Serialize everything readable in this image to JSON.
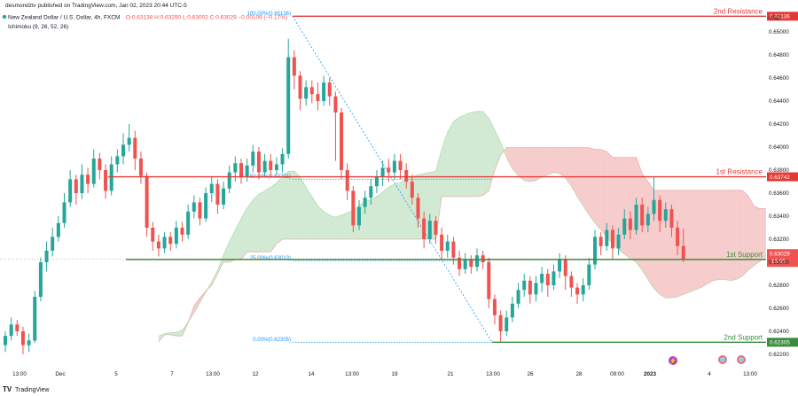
{
  "header": {
    "publisher": "desmondziv published on TradingView.com, Jan 02, 2023 20:44 UTC-5",
    "symbol_line": "New Zealand Dollar / U.S. Dollar, 4h, FXCM",
    "ohlc": "O:0.63138  H:0.63290  L:0.63002  C:0.63029  −0.00109 (−0.17%)",
    "indicator": "Ichimoku (9, 26, 52, 26)"
  },
  "footer": {
    "brand": "TradingView"
  },
  "chart_data": {
    "type": "candlestick",
    "currency": "USD",
    "ylim": [
      0.621,
      0.652
    ],
    "y_ticks": [
      0.622,
      0.624,
      0.626,
      0.628,
      0.63,
      0.632,
      0.634,
      0.636,
      0.638,
      0.64,
      0.642,
      0.644,
      0.646,
      0.648,
      0.65
    ],
    "x_ticks": [
      "13:00",
      "Dec",
      "5",
      "7",
      "13:00",
      "12",
      "14",
      "13:00",
      "19",
      "21",
      "13:00",
      "26",
      "28",
      "09:00",
      "2023",
      "4",
      "13:00"
    ],
    "levels": [
      {
        "label": "2nd Resistance",
        "price": 0.65136,
        "price_label": "0.65136",
        "color": "#e53935"
      },
      {
        "label": "1st Resistance",
        "price": 0.63742,
        "price_label": "0.63742",
        "color": "#e53935"
      },
      {
        "label": "1st Support",
        "price": 0.63024,
        "price_label": "0.63024",
        "color": "#388e3c"
      },
      {
        "label": "2nd Support",
        "price": 0.62305,
        "price_label": "0.62305",
        "color": "#388e3c"
      }
    ],
    "fibonacci": [
      {
        "label": "100.00%(0.65136)",
        "price": 0.65136
      },
      {
        "label": "50.00%(0.63721)",
        "price": 0.63721
      },
      {
        "label": "25.00%(0.63013)",
        "price": 0.63013
      },
      {
        "label": "0.00%(0.62305)",
        "price": 0.62305
      }
    ],
    "current_price": {
      "price": 0.63029,
      "label": "0.63029",
      "countdown": "15:05"
    },
    "candles": [
      [
        0.6228,
        0.6236,
        0.6222,
        0.624
      ],
      [
        0.6236,
        0.6246,
        0.6232,
        0.6252
      ],
      [
        0.6246,
        0.624,
        0.6236,
        0.625
      ],
      [
        0.624,
        0.6228,
        0.622,
        0.6244
      ],
      [
        0.6228,
        0.6232,
        0.6222,
        0.6238
      ],
      [
        0.6232,
        0.627,
        0.623,
        0.6275
      ],
      [
        0.627,
        0.63,
        0.6266,
        0.6304
      ],
      [
        0.63,
        0.631,
        0.6292,
        0.6318
      ],
      [
        0.631,
        0.6322,
        0.6305,
        0.633
      ],
      [
        0.6322,
        0.6334,
        0.6318,
        0.634
      ],
      [
        0.6334,
        0.6352,
        0.633,
        0.636
      ],
      [
        0.6352,
        0.6372,
        0.6348,
        0.638
      ],
      [
        0.6372,
        0.636,
        0.635,
        0.6376
      ],
      [
        0.636,
        0.6376,
        0.6355,
        0.6385
      ],
      [
        0.6376,
        0.6368,
        0.636,
        0.6382
      ],
      [
        0.6368,
        0.639,
        0.6365,
        0.6398
      ],
      [
        0.639,
        0.638,
        0.6372,
        0.6395
      ],
      [
        0.638,
        0.6362,
        0.6355,
        0.6385
      ],
      [
        0.6362,
        0.6385,
        0.6358,
        0.6392
      ],
      [
        0.6385,
        0.6392,
        0.6378,
        0.6398
      ],
      [
        0.6392,
        0.6402,
        0.6385,
        0.6412
      ],
      [
        0.6402,
        0.6408,
        0.6396,
        0.642
      ],
      [
        0.6408,
        0.639,
        0.638,
        0.6414
      ],
      [
        0.639,
        0.6375,
        0.6368,
        0.6396
      ],
      [
        0.6375,
        0.633,
        0.6322,
        0.6378
      ],
      [
        0.633,
        0.6318,
        0.631,
        0.6335
      ],
      [
        0.6318,
        0.6312,
        0.6305,
        0.6324
      ],
      [
        0.6312,
        0.6322,
        0.6308,
        0.6326
      ],
      [
        0.6322,
        0.6316,
        0.631,
        0.6326
      ],
      [
        0.6316,
        0.633,
        0.6312,
        0.6336
      ],
      [
        0.633,
        0.6324,
        0.6318,
        0.6335
      ],
      [
        0.6324,
        0.6344,
        0.632,
        0.635
      ],
      [
        0.6344,
        0.6352,
        0.6338,
        0.6358
      ],
      [
        0.6352,
        0.6338,
        0.6332,
        0.6356
      ],
      [
        0.6338,
        0.636,
        0.6335,
        0.6365
      ],
      [
        0.636,
        0.6368,
        0.6352,
        0.6374
      ],
      [
        0.6368,
        0.635,
        0.6342,
        0.6372
      ],
      [
        0.635,
        0.6364,
        0.6346,
        0.637
      ],
      [
        0.6364,
        0.6378,
        0.636,
        0.6384
      ],
      [
        0.6378,
        0.6386,
        0.637,
        0.6392
      ],
      [
        0.6386,
        0.6374,
        0.6368,
        0.639
      ],
      [
        0.6374,
        0.6384,
        0.637,
        0.639
      ],
      [
        0.6384,
        0.6396,
        0.6378,
        0.6402
      ],
      [
        0.6396,
        0.6378,
        0.6372,
        0.64
      ],
      [
        0.6378,
        0.6388,
        0.6374,
        0.6394
      ],
      [
        0.6388,
        0.638,
        0.6374,
        0.6394
      ],
      [
        0.638,
        0.6385,
        0.6376,
        0.6391
      ],
      [
        0.6385,
        0.6394,
        0.6378,
        0.6399
      ],
      [
        0.6394,
        0.6478,
        0.639,
        0.6494
      ],
      [
        0.6478,
        0.6462,
        0.645,
        0.6484
      ],
      [
        0.6462,
        0.6442,
        0.6432,
        0.6466
      ],
      [
        0.6442,
        0.6452,
        0.6436,
        0.6458
      ],
      [
        0.6452,
        0.6446,
        0.6438,
        0.6458
      ],
      [
        0.6446,
        0.644,
        0.6432,
        0.6456
      ],
      [
        0.644,
        0.6456,
        0.6436,
        0.6462
      ],
      [
        0.6456,
        0.6444,
        0.6436,
        0.646
      ],
      [
        0.6444,
        0.643,
        0.6388,
        0.6448
      ],
      [
        0.643,
        0.638,
        0.6372,
        0.6434
      ],
      [
        0.638,
        0.6362,
        0.6354,
        0.6386
      ],
      [
        0.6362,
        0.6332,
        0.6326,
        0.6366
      ],
      [
        0.6332,
        0.6348,
        0.6328,
        0.6354
      ],
      [
        0.6348,
        0.6356,
        0.6342,
        0.6362
      ],
      [
        0.6356,
        0.6366,
        0.635,
        0.6372
      ],
      [
        0.6366,
        0.6374,
        0.636,
        0.638
      ],
      [
        0.6374,
        0.6382,
        0.6366,
        0.6388
      ],
      [
        0.6382,
        0.6378,
        0.637,
        0.639
      ],
      [
        0.6378,
        0.6388,
        0.6372,
        0.6394
      ],
      [
        0.6388,
        0.638,
        0.6372,
        0.6394
      ],
      [
        0.638,
        0.637,
        0.6364,
        0.6386
      ],
      [
        0.637,
        0.6356,
        0.635,
        0.6376
      ],
      [
        0.6356,
        0.6338,
        0.633,
        0.636
      ],
      [
        0.6338,
        0.632,
        0.6312,
        0.6344
      ],
      [
        0.632,
        0.6336,
        0.6316,
        0.6342
      ],
      [
        0.6336,
        0.6324,
        0.6316,
        0.634
      ],
      [
        0.6324,
        0.631,
        0.6302,
        0.633
      ],
      [
        0.631,
        0.6318,
        0.6304,
        0.6324
      ],
      [
        0.6318,
        0.6304,
        0.6298,
        0.6322
      ],
      [
        0.6304,
        0.6294,
        0.6288,
        0.631
      ],
      [
        0.6294,
        0.6302,
        0.629,
        0.6308
      ],
      [
        0.6302,
        0.6296,
        0.629,
        0.6306
      ],
      [
        0.6296,
        0.6306,
        0.6292,
        0.6312
      ],
      [
        0.6306,
        0.63,
        0.6294,
        0.631
      ],
      [
        0.63,
        0.6268,
        0.626,
        0.6304
      ],
      [
        0.6268,
        0.6254,
        0.6246,
        0.6272
      ],
      [
        0.6254,
        0.624,
        0.6231,
        0.6258
      ],
      [
        0.624,
        0.6252,
        0.6236,
        0.6258
      ],
      [
        0.6252,
        0.6264,
        0.6248,
        0.627
      ],
      [
        0.6264,
        0.6276,
        0.626,
        0.6282
      ],
      [
        0.6276,
        0.6284,
        0.627,
        0.629
      ],
      [
        0.6284,
        0.6272,
        0.6264,
        0.6288
      ],
      [
        0.6272,
        0.6282,
        0.6266,
        0.6288
      ],
      [
        0.6282,
        0.629,
        0.6274,
        0.6296
      ],
      [
        0.629,
        0.628,
        0.627,
        0.6294
      ],
      [
        0.628,
        0.6292,
        0.6276,
        0.6298
      ],
      [
        0.6292,
        0.6302,
        0.6286,
        0.6308
      ],
      [
        0.6302,
        0.6288,
        0.6276,
        0.6306
      ],
      [
        0.6288,
        0.6278,
        0.627,
        0.6292
      ],
      [
        0.6278,
        0.6272,
        0.6264,
        0.6282
      ],
      [
        0.6272,
        0.628,
        0.6266,
        0.6286
      ],
      [
        0.628,
        0.6298,
        0.6276,
        0.6304
      ],
      [
        0.6298,
        0.6322,
        0.6294,
        0.6328
      ],
      [
        0.6322,
        0.6314,
        0.6306,
        0.6326
      ],
      [
        0.6314,
        0.6328,
        0.631,
        0.6334
      ],
      [
        0.6328,
        0.6312,
        0.6302,
        0.6332
      ],
      [
        0.6312,
        0.6324,
        0.6306,
        0.633
      ],
      [
        0.6324,
        0.6338,
        0.632,
        0.6346
      ],
      [
        0.6338,
        0.6328,
        0.632,
        0.6344
      ],
      [
        0.6328,
        0.635,
        0.6324,
        0.6356
      ],
      [
        0.635,
        0.6332,
        0.6326,
        0.6356
      ],
      [
        0.6332,
        0.6342,
        0.6326,
        0.6348
      ],
      [
        0.6342,
        0.6354,
        0.6336,
        0.6374
      ],
      [
        0.6354,
        0.6336,
        0.6326,
        0.6358
      ],
      [
        0.6336,
        0.6346,
        0.633,
        0.6352
      ],
      [
        0.6346,
        0.633,
        0.6322,
        0.635
      ],
      [
        0.633,
        0.6314,
        0.6306,
        0.6336
      ],
      [
        0.6314,
        0.6303,
        0.63,
        0.6329
      ]
    ],
    "tenkan": [
      0.6234,
      0.6238,
      0.624,
      0.624,
      0.6242,
      0.6252,
      0.6262,
      0.6272,
      0.6282,
      0.6292,
      0.6302,
      0.6318,
      0.6332,
      0.6342,
      0.6352,
      0.636,
      0.6366,
      0.637,
      0.6372,
      0.6374,
      0.6378,
      0.6384,
      0.6388,
      0.6386,
      0.6378,
      0.6364,
      0.6352,
      0.634,
      0.6332,
      0.6328,
      0.6326,
      0.633,
      0.6334,
      0.6338,
      0.6344,
      0.635,
      0.6352,
      0.6356,
      0.6362,
      0.6368,
      0.6372,
      0.6374,
      0.6378,
      0.638,
      0.6382,
      0.6384,
      0.6384,
      0.6386,
      0.641,
      0.6428,
      0.6438,
      0.6442,
      0.6444,
      0.6446,
      0.6448,
      0.6448,
      0.644,
      0.6426,
      0.641,
      0.6392,
      0.638,
      0.6372,
      0.6366,
      0.6364,
      0.6366,
      0.637,
      0.6374,
      0.6378,
      0.6378,
      0.6374,
      0.6366,
      0.6356,
      0.6348,
      0.634,
      0.6332,
      0.6326,
      0.632,
      0.6314,
      0.631,
      0.6308,
      0.6306,
      0.6304,
      0.6296,
      0.6286,
      0.6276,
      0.627,
      0.6266,
      0.6266,
      0.6268,
      0.627,
      0.6272,
      0.6274,
      0.6276,
      0.628,
      0.6284,
      0.6286,
      0.6286,
      0.6284,
      0.6284,
      0.6288,
      0.6294,
      0.6298,
      0.6302,
      0.6306,
      0.631,
      0.6316,
      0.632,
      0.6326,
      0.633,
      0.6332,
      0.6336,
      0.6338,
      0.634,
      0.6338,
      0.6334,
      0.6326
    ],
    "kijun": [
      0.6238,
      0.6238,
      0.6238,
      0.6238,
      0.624,
      0.6244,
      0.625,
      0.6258,
      0.6266,
      0.6274,
      0.6284,
      0.6294,
      0.6304,
      0.6314,
      0.6324,
      0.6334,
      0.6342,
      0.6348,
      0.6352,
      0.6356,
      0.636,
      0.6366,
      0.637,
      0.6372,
      0.637,
      0.6366,
      0.6362,
      0.6358,
      0.6356,
      0.6354,
      0.6352,
      0.6352,
      0.6352,
      0.6352,
      0.6354,
      0.6356,
      0.6356,
      0.6358,
      0.636,
      0.6362,
      0.6364,
      0.6364,
      0.6366,
      0.6368,
      0.637,
      0.637,
      0.6372,
      0.6372,
      0.6386,
      0.6398,
      0.6406,
      0.641,
      0.6412,
      0.6414,
      0.6414,
      0.6414,
      0.641,
      0.6404,
      0.6398,
      0.639,
      0.6382,
      0.6378,
      0.6376,
      0.6376,
      0.6376,
      0.6378,
      0.6378,
      0.6378,
      0.6376,
      0.6372,
      0.6366,
      0.6358,
      0.635,
      0.6342,
      0.6336,
      0.633,
      0.6324,
      0.6318,
      0.6312,
      0.6306,
      0.63,
      0.6296,
      0.629,
      0.6284,
      0.6278,
      0.6274,
      0.6272,
      0.6272,
      0.6272,
      0.6274,
      0.6276,
      0.6278,
      0.628,
      0.6282,
      0.6284,
      0.6284,
      0.6284,
      0.6284,
      0.6286,
      0.6288,
      0.6292,
      0.6296,
      0.63,
      0.6304,
      0.6308,
      0.6312,
      0.6316,
      0.632,
      0.6324,
      0.6326,
      0.6328,
      0.633,
      0.633,
      0.633,
      0.6328,
      0.6326
    ]
  }
}
